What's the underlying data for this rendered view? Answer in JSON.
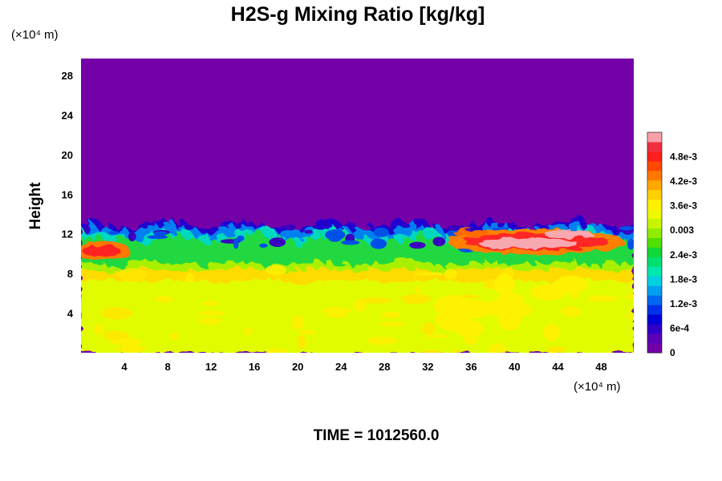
{
  "chart_data": {
    "type": "heatmap",
    "title": "H2S-g Mixing Ratio [kg/kg]",
    "xlabel": "",
    "ylabel": "Height",
    "x_unit_label": "(×10⁴ m)",
    "y_unit_label": "(×10⁴ m)",
    "x_ticks": [
      4,
      8,
      12,
      16,
      20,
      24,
      28,
      32,
      36,
      40,
      44,
      48
    ],
    "y_ticks": [
      4,
      8,
      12,
      16,
      20,
      24,
      28
    ],
    "xlim": [
      0,
      51
    ],
    "ylim": [
      0,
      29.7
    ],
    "grid": false,
    "colorbar": {
      "range": [
        0,
        0.0054
      ],
      "tick_values": [
        0,
        0.0006,
        0.0012,
        0.0018,
        0.0024,
        0.003,
        0.0036,
        0.0042,
        0.0048
      ],
      "tick_labels": [
        "0",
        "6e-4",
        "1.2e-3",
        "1.8e-3",
        "2.4e-3",
        "0.003",
        "3.6e-3",
        "4.2e-3",
        "4.8e-3"
      ],
      "colors": [
        "#7400a8",
        "#5a00b8",
        "#3000c8",
        "#0000d8",
        "#0030e8",
        "#0068f0",
        "#00a0f0",
        "#00d0e0",
        "#00e8b0",
        "#00e070",
        "#10d838",
        "#50e000",
        "#90ec00",
        "#c8f400",
        "#eef800",
        "#fff000",
        "#ffd000",
        "#ffa800",
        "#ff7800",
        "#ff4800",
        "#ff1e1e",
        "#f03040",
        "#f8a0a8"
      ]
    },
    "field_summary": {
      "upper_region_value": 0,
      "lower_region_value": 0.0034,
      "mixing_layer_height": [
        10,
        13
      ],
      "high_values_near": [
        {
          "x": 2,
          "y": 10.3
        },
        {
          "x": 42,
          "y": 11.2
        }
      ]
    }
  },
  "footer": {
    "time_label": "TIME = 1012560.0"
  }
}
